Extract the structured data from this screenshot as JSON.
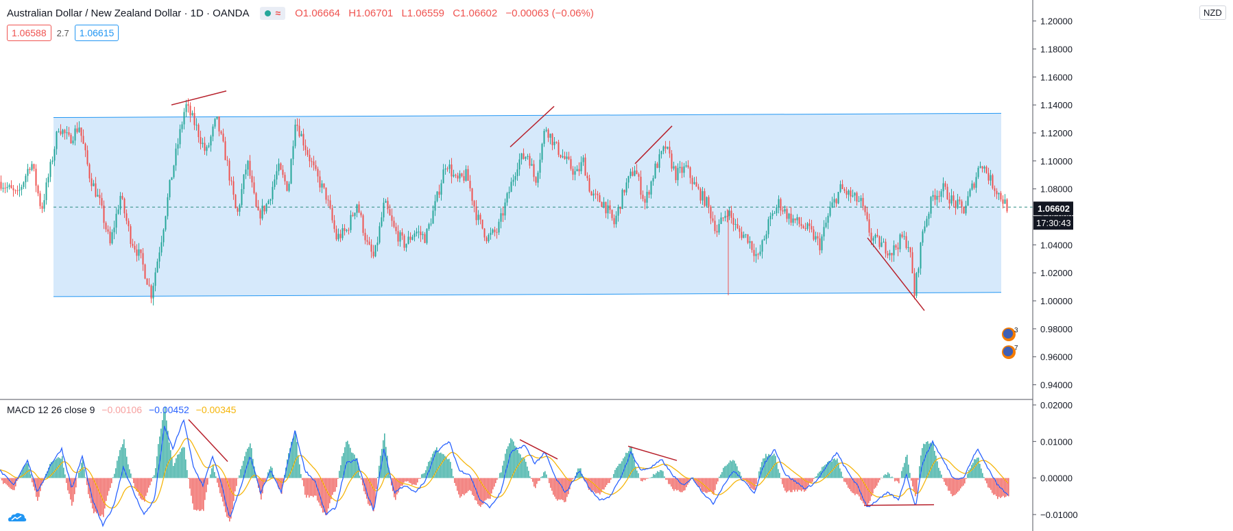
{
  "legend": {
    "symbol": "Australian Dollar / New Zealand Dollar · 1D · OANDA",
    "open": "O1.06664",
    "high": "H1.06701",
    "low": "L1.06559",
    "close": "C1.06602",
    "change": "−0.00063 (−0.06%)",
    "wave_glyph": "≈"
  },
  "quote": {
    "sell": "1.06588",
    "spread": "2.7",
    "buy": "1.06615"
  },
  "currency": "NZD",
  "price_label": "1.06602",
  "countdown": "17:30:43",
  "events": [
    {
      "count": "3"
    },
    {
      "count": "7"
    }
  ],
  "macd_legend": {
    "name": "MACD 12 26 close 9",
    "histogram": "−0.00106",
    "macd": "−0.00452",
    "signal": "−0.00345"
  },
  "colors": {
    "up": "#26a69a",
    "down": "#ef5350",
    "channel_fill": "#d6e9fb",
    "channel_line": "#2196f3",
    "trendline": "#b7202b",
    "macd_line": "#2962ff",
    "signal_line": "#f5b50a",
    "hist_pos": "#26a69a",
    "hist_neg": "#ef5350"
  },
  "chart_data": [
    {
      "type": "candlestick",
      "title": "Australian Dollar / New Zealand Dollar · 1D · OANDA",
      "ylim": [
        0.93,
        1.215
      ],
      "yticks": [
        "1.20000",
        "1.18000",
        "1.16000",
        "1.14000",
        "1.12000",
        "1.10000",
        "1.08000",
        "1.06000",
        "1.04000",
        "1.02000",
        "1.00000",
        "0.98000",
        "0.96000",
        "0.94000"
      ],
      "anchors": [
        [
          0,
          1.085
        ],
        [
          25,
          1.075
        ],
        [
          45,
          1.1
        ],
        [
          60,
          1.065
        ],
        [
          75,
          1.1
        ],
        [
          85,
          1.125
        ],
        [
          100,
          1.115
        ],
        [
          115,
          1.125
        ],
        [
          130,
          1.09
        ],
        [
          145,
          1.07
        ],
        [
          160,
          1.04
        ],
        [
          175,
          1.075
        ],
        [
          190,
          1.045
        ],
        [
          205,
          1.03
        ],
        [
          220,
          1.005
        ],
        [
          235,
          1.045
        ],
        [
          248,
          1.085
        ],
        [
          260,
          1.115
        ],
        [
          270,
          1.14
        ],
        [
          285,
          1.125
        ],
        [
          300,
          1.105
        ],
        [
          315,
          1.13
        ],
        [
          330,
          1.1
        ],
        [
          345,
          1.06
        ],
        [
          360,
          1.1
        ],
        [
          375,
          1.06
        ],
        [
          390,
          1.07
        ],
        [
          405,
          1.095
        ],
        [
          420,
          1.08
        ],
        [
          430,
          1.13
        ],
        [
          445,
          1.11
        ],
        [
          460,
          1.09
        ],
        [
          475,
          1.075
        ],
        [
          490,
          1.045
        ],
        [
          505,
          1.05
        ],
        [
          520,
          1.07
        ],
        [
          535,
          1.04
        ],
        [
          545,
          1.03
        ],
        [
          560,
          1.07
        ],
        [
          575,
          1.05
        ],
        [
          590,
          1.04
        ],
        [
          605,
          1.05
        ],
        [
          620,
          1.045
        ],
        [
          635,
          1.07
        ],
        [
          650,
          1.1
        ],
        [
          665,
          1.085
        ],
        [
          680,
          1.09
        ],
        [
          695,
          1.06
        ],
        [
          710,
          1.045
        ],
        [
          725,
          1.05
        ],
        [
          740,
          1.075
        ],
        [
          755,
          1.1
        ],
        [
          770,
          1.105
        ],
        [
          780,
          1.085
        ],
        [
          795,
          1.125
        ],
        [
          810,
          1.11
        ],
        [
          825,
          1.1
        ],
        [
          840,
          1.09
        ],
        [
          850,
          1.1
        ],
        [
          862,
          1.075
        ],
        [
          880,
          1.07
        ],
        [
          895,
          1.055
        ],
        [
          910,
          1.08
        ],
        [
          925,
          1.095
        ],
        [
          940,
          1.07
        ],
        [
          955,
          1.095
        ],
        [
          970,
          1.11
        ],
        [
          985,
          1.09
        ],
        [
          1000,
          1.095
        ],
        [
          1015,
          1.08
        ],
        [
          1030,
          1.07
        ],
        [
          1045,
          1.05
        ],
        [
          1060,
          1.065
        ],
        [
          1075,
          1.05
        ],
        [
          1090,
          1.045
        ],
        [
          1105,
          1.03
        ],
        [
          1120,
          1.055
        ],
        [
          1135,
          1.07
        ],
        [
          1150,
          1.06
        ],
        [
          1165,
          1.055
        ],
        [
          1180,
          1.05
        ],
        [
          1195,
          1.04
        ],
        [
          1210,
          1.065
        ],
        [
          1225,
          1.08
        ],
        [
          1240,
          1.075
        ],
        [
          1255,
          1.07
        ],
        [
          1270,
          1.045
        ],
        [
          1285,
          1.04
        ],
        [
          1300,
          1.035
        ],
        [
          1315,
          1.045
        ],
        [
          1325,
          1.04
        ],
        [
          1333,
          1.005
        ],
        [
          1345,
          1.05
        ],
        [
          1360,
          1.075
        ],
        [
          1375,
          1.08
        ],
        [
          1390,
          1.07
        ],
        [
          1405,
          1.065
        ],
        [
          1420,
          1.085
        ],
        [
          1430,
          1.1
        ],
        [
          1445,
          1.085
        ],
        [
          1458,
          1.075
        ],
        [
          1470,
          1.066
        ]
      ],
      "channel": {
        "upper": [
          [
            78,
            1.131
          ],
          [
            1460,
            1.134
          ]
        ],
        "lower": [
          [
            78,
            1.003
          ],
          [
            1460,
            1.006
          ]
        ],
        "mid_level": 1.067
      },
      "trendlines": [
        [
          [
            250,
            1.14
          ],
          [
            330,
            1.15
          ]
        ],
        [
          [
            744,
            1.11
          ],
          [
            808,
            1.139
          ]
        ],
        [
          [
            926,
            1.098
          ],
          [
            980,
            1.125
          ]
        ],
        [
          [
            1265,
            1.045
          ],
          [
            1348,
            0.993
          ]
        ]
      ],
      "last_price": 1.06602
    },
    {
      "type": "line",
      "title": "MACD 12 26 close 9",
      "ylim": [
        -0.0145,
        0.0215
      ],
      "yticks": [
        "0.02000",
        "0.01000",
        "0.00000",
        "−0.01000"
      ],
      "macd_anchors": [
        [
          0,
          0.002
        ],
        [
          20,
          -0.002
        ],
        [
          40,
          0.005
        ],
        [
          55,
          -0.004
        ],
        [
          75,
          0.004
        ],
        [
          90,
          0.008
        ],
        [
          105,
          -0.003
        ],
        [
          120,
          0.006
        ],
        [
          135,
          -0.006
        ],
        [
          150,
          -0.013
        ],
        [
          165,
          -0.008
        ],
        [
          180,
          0.003
        ],
        [
          195,
          -0.004
        ],
        [
          210,
          -0.01
        ],
        [
          225,
          -0.006
        ],
        [
          240,
          0.014
        ],
        [
          252,
          0.008
        ],
        [
          268,
          0.016
        ],
        [
          282,
          0.003
        ],
        [
          296,
          -0.002
        ],
        [
          310,
          0.006
        ],
        [
          322,
          -0.001
        ],
        [
          335,
          -0.011
        ],
        [
          350,
          -0.003
        ],
        [
          365,
          0.006
        ],
        [
          380,
          -0.004
        ],
        [
          395,
          0.002
        ],
        [
          410,
          -0.004
        ],
        [
          430,
          0.013
        ],
        [
          445,
          0.002
        ],
        [
          460,
          -0.001
        ],
        [
          475,
          -0.01
        ],
        [
          490,
          -0.008
        ],
        [
          505,
          0.004
        ],
        [
          520,
          0.005
        ],
        [
          535,
          -0.004
        ],
        [
          545,
          -0.009
        ],
        [
          560,
          0.008
        ],
        [
          575,
          -0.004
        ],
        [
          590,
          -0.002
        ],
        [
          605,
          -0.004
        ],
        [
          620,
          -0.001
        ],
        [
          635,
          0.007
        ],
        [
          655,
          0.01
        ],
        [
          670,
          0.002
        ],
        [
          685,
          0.001
        ],
        [
          700,
          -0.006
        ],
        [
          715,
          -0.008
        ],
        [
          730,
          -0.004
        ],
        [
          745,
          0.007
        ],
        [
          765,
          0.009
        ],
        [
          780,
          0.004
        ],
        [
          795,
          0.007
        ],
        [
          810,
          0.0
        ],
        [
          825,
          -0.004
        ],
        [
          845,
          0.002
        ],
        [
          860,
          -0.003
        ],
        [
          875,
          -0.006
        ],
        [
          890,
          -0.005
        ],
        [
          905,
          0.0
        ],
        [
          920,
          0.007
        ],
        [
          935,
          0.002
        ],
        [
          950,
          0.003
        ],
        [
          965,
          0.005
        ],
        [
          980,
          0.001
        ],
        [
          995,
          -0.002
        ],
        [
          1010,
          0.0
        ],
        [
          1025,
          -0.004
        ],
        [
          1040,
          -0.007
        ],
        [
          1055,
          -0.002
        ],
        [
          1070,
          0.002
        ],
        [
          1085,
          -0.001
        ],
        [
          1100,
          -0.004
        ],
        [
          1115,
          0.004
        ],
        [
          1130,
          0.008
        ],
        [
          1145,
          0.001
        ],
        [
          1160,
          -0.001
        ],
        [
          1175,
          -0.003
        ],
        [
          1190,
          -0.001
        ],
        [
          1205,
          0.003
        ],
        [
          1220,
          0.007
        ],
        [
          1235,
          0.002
        ],
        [
          1250,
          -0.002
        ],
        [
          1265,
          -0.008
        ],
        [
          1280,
          -0.006
        ],
        [
          1295,
          -0.004
        ],
        [
          1310,
          -0.006
        ],
        [
          1322,
          0.001
        ],
        [
          1335,
          -0.008
        ],
        [
          1345,
          0.004
        ],
        [
          1360,
          0.01
        ],
        [
          1375,
          0.005
        ],
        [
          1390,
          0.0
        ],
        [
          1405,
          0.0
        ],
        [
          1425,
          0.008
        ],
        [
          1440,
          0.003
        ],
        [
          1455,
          -0.002
        ],
        [
          1470,
          -0.0045
        ]
      ],
      "trendlines": [
        [
          [
            275,
            0.016
          ],
          [
            332,
            0.0045
          ]
        ],
        [
          [
            758,
            0.0105
          ],
          [
            813,
            0.0052
          ]
        ],
        [
          [
            916,
            0.0087
          ],
          [
            987,
            0.0048
          ]
        ],
        [
          [
            1260,
            -0.0075
          ],
          [
            1362,
            -0.0073
          ]
        ]
      ]
    }
  ]
}
